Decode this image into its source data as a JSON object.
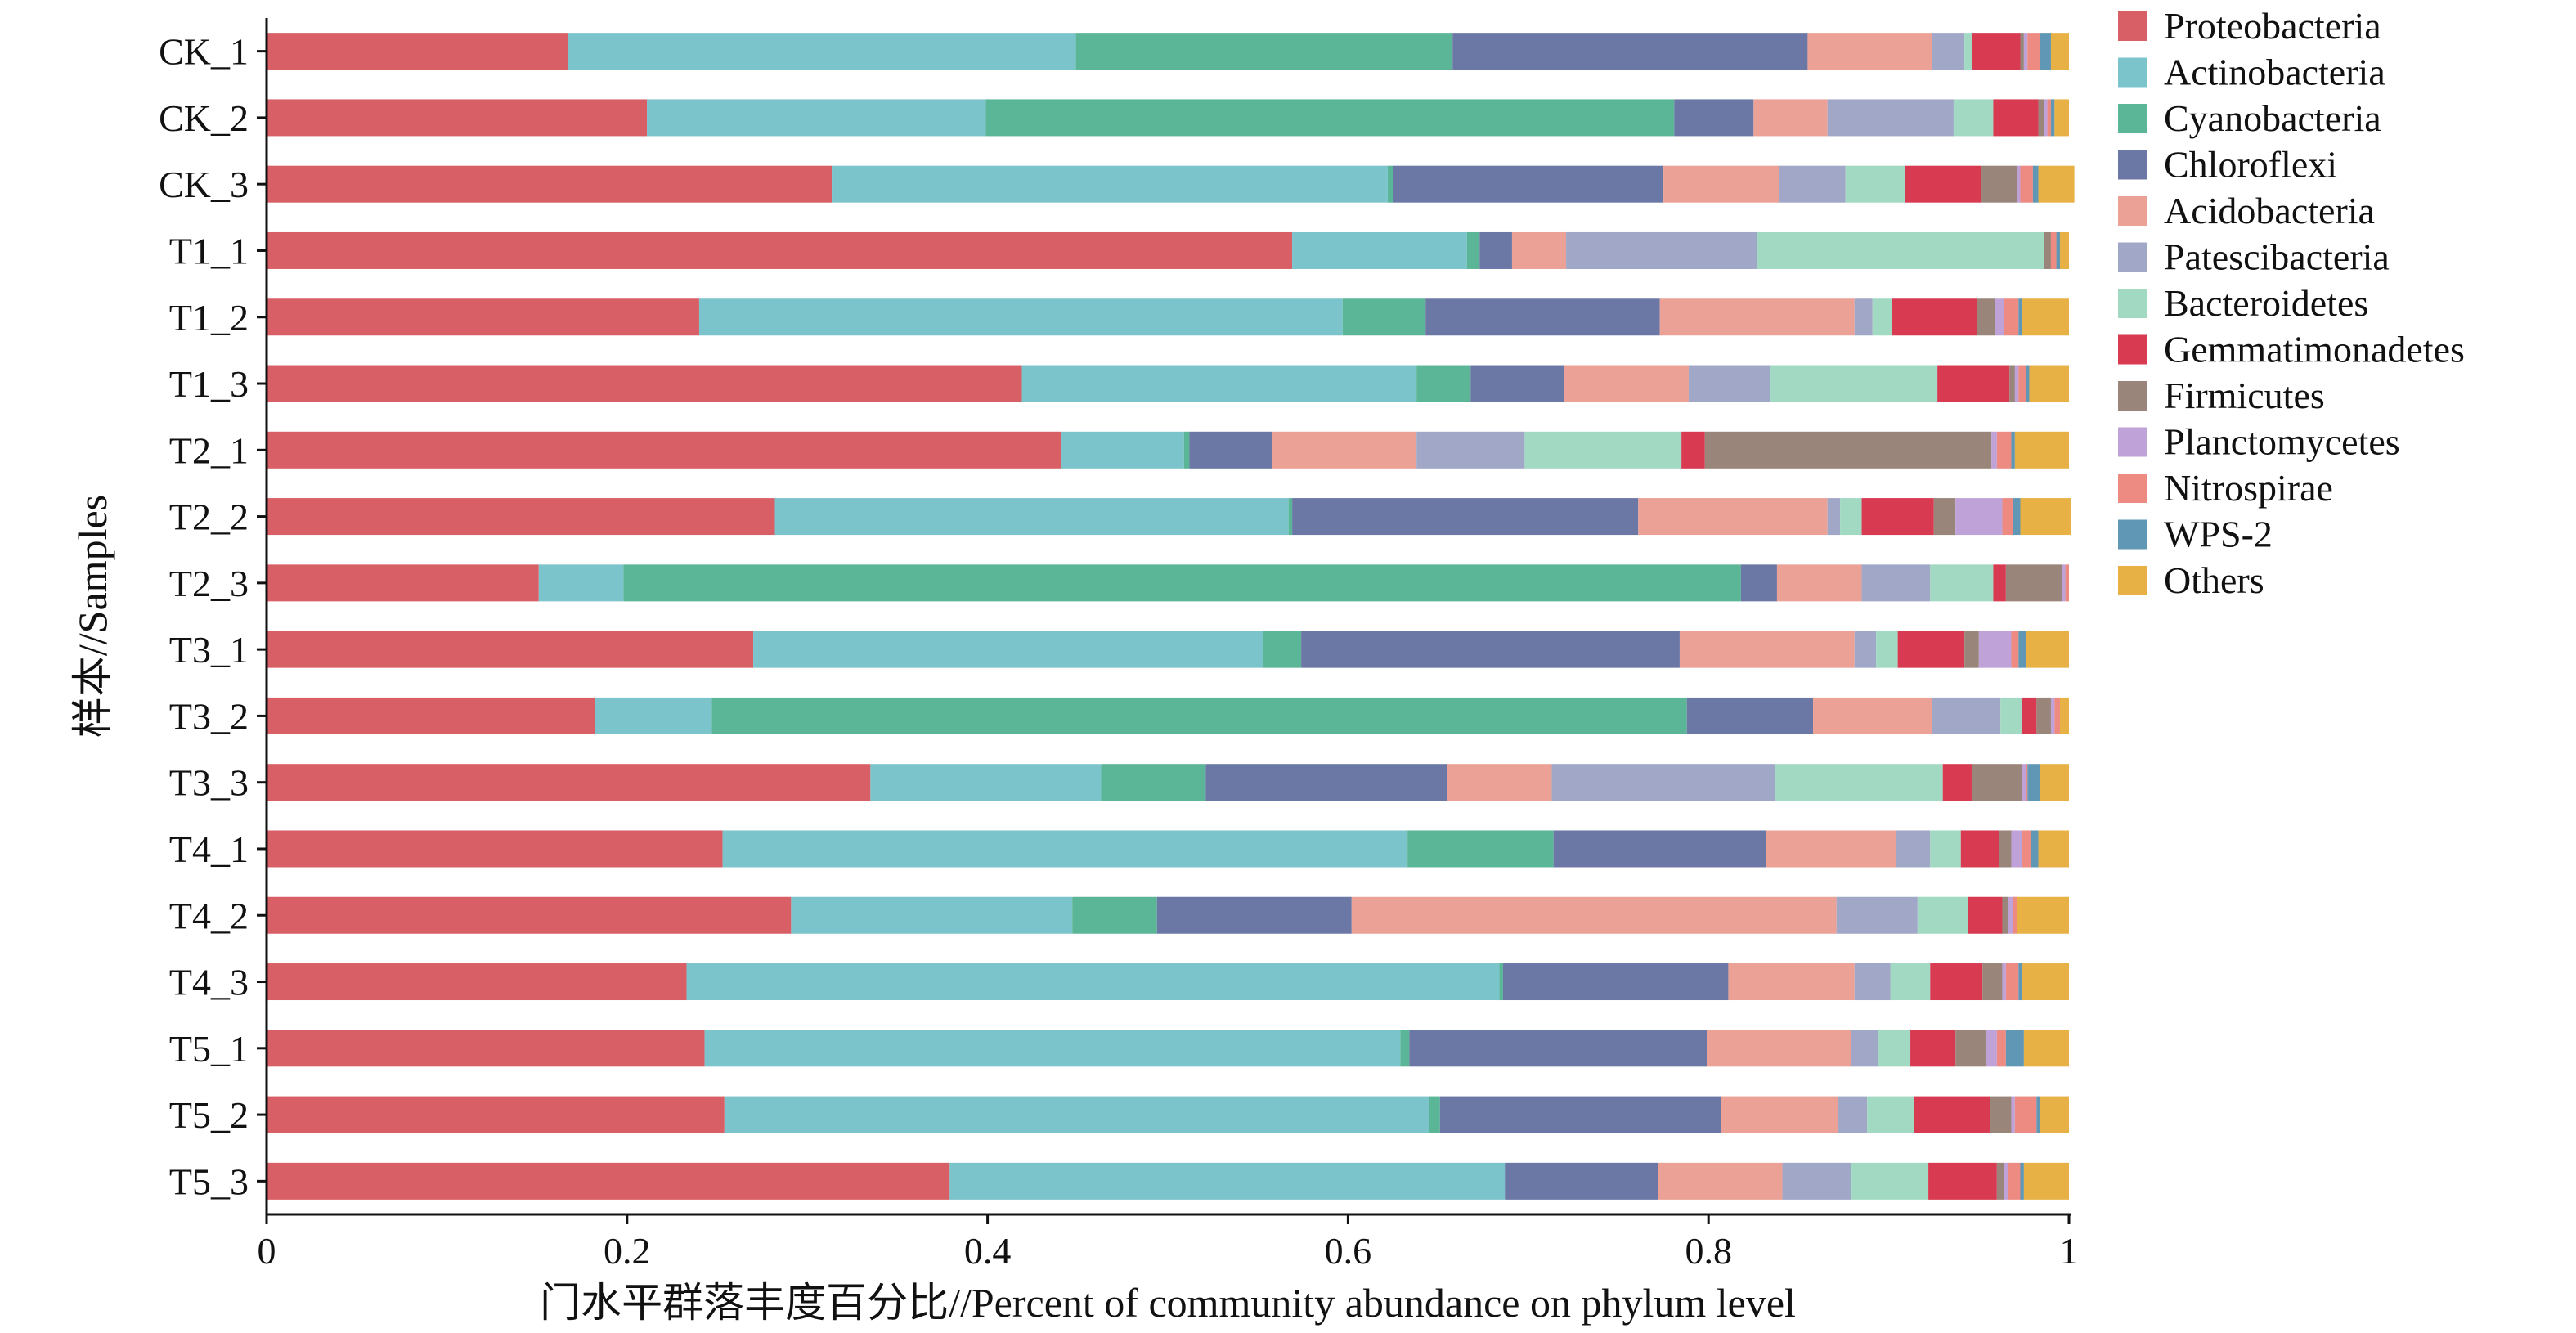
{
  "chart_data": {
    "type": "bar",
    "orientation": "horizontal",
    "stacked": true,
    "title": "",
    "xlabel": "门水平群落丰度百分比//Percent of community abundance on phylum level",
    "ylabel": "样本//Samples",
    "xlim": [
      0,
      1
    ],
    "xticks": [
      "0",
      "0.2",
      "0.4",
      "0.6",
      "0.8",
      "1"
    ],
    "grid": false,
    "legend_position": "right",
    "categories": [
      "CK_1",
      "CK_2",
      "CK_3",
      "T1_1",
      "T1_2",
      "T1_3",
      "T2_1",
      "T2_2",
      "T2_3",
      "T3_1",
      "T3_2",
      "T3_3",
      "T4_1",
      "T4_2",
      "T4_3",
      "T5_1",
      "T5_2",
      "T5_3"
    ],
    "series": [
      {
        "name": "Proteobacteria",
        "color": "#d95f66",
        "values": [
          0.167,
          0.211,
          0.314,
          0.569,
          0.24,
          0.419,
          0.441,
          0.282,
          0.151,
          0.27,
          0.182,
          0.335,
          0.253,
          0.291,
          0.233,
          0.243,
          0.254,
          0.379
        ]
      },
      {
        "name": "Actinobacteria",
        "color": "#7cc4cb",
        "values": [
          0.282,
          0.188,
          0.308,
          0.097,
          0.357,
          0.219,
          0.068,
          0.285,
          0.047,
          0.283,
          0.065,
          0.128,
          0.38,
          0.156,
          0.451,
          0.386,
          0.391,
          0.308
        ]
      },
      {
        "name": "Cyanobacteria",
        "color": "#5bb597",
        "values": [
          0.209,
          0.382,
          0.003,
          0.007,
          0.046,
          0.03,
          0.003,
          0.002,
          0.62,
          0.021,
          0.541,
          0.058,
          0.081,
          0.047,
          0.002,
          0.005,
          0.006,
          0.0
        ]
      },
      {
        "name": "Chloroflexi",
        "color": "#6b78a6",
        "values": [
          0.197,
          0.044,
          0.15,
          0.018,
          0.13,
          0.052,
          0.046,
          0.192,
          0.02,
          0.21,
          0.07,
          0.134,
          0.118,
          0.108,
          0.125,
          0.165,
          0.156,
          0.085
        ]
      },
      {
        "name": "Acidobacteria",
        "color": "#eba196",
        "values": [
          0.069,
          0.041,
          0.064,
          0.03,
          0.108,
          0.069,
          0.08,
          0.105,
          0.047,
          0.097,
          0.066,
          0.058,
          0.072,
          0.269,
          0.07,
          0.08,
          0.065,
          0.069
        ]
      },
      {
        "name": "Patescibacteria",
        "color": "#a0a7c7",
        "values": [
          0.018,
          0.07,
          0.037,
          0.106,
          0.01,
          0.045,
          0.06,
          0.007,
          0.038,
          0.012,
          0.038,
          0.124,
          0.019,
          0.045,
          0.02,
          0.015,
          0.016,
          0.038
        ]
      },
      {
        "name": "Bacteroidetes",
        "color": "#a2d9c2",
        "values": [
          0.004,
          0.022,
          0.033,
          0.159,
          0.011,
          0.093,
          0.087,
          0.012,
          0.035,
          0.012,
          0.012,
          0.093,
          0.017,
          0.028,
          0.022,
          0.018,
          0.026,
          0.043
        ]
      },
      {
        "name": "Gemmatimonadetes",
        "color": "#d83a52",
        "values": [
          0.027,
          0.025,
          0.042,
          0.0,
          0.047,
          0.04,
          0.013,
          0.04,
          0.007,
          0.037,
          0.008,
          0.016,
          0.021,
          0.019,
          0.029,
          0.025,
          0.042,
          0.038
        ]
      },
      {
        "name": "Firmicutes",
        "color": "#9a857a",
        "values": [
          0.002,
          0.003,
          0.02,
          0.004,
          0.01,
          0.003,
          0.159,
          0.012,
          0.031,
          0.008,
          0.008,
          0.028,
          0.007,
          0.003,
          0.011,
          0.017,
          0.012,
          0.004
        ]
      },
      {
        "name": "Planctomycetes",
        "color": "#bfa3d8",
        "values": [
          0.002,
          0.002,
          0.002,
          0.0,
          0.005,
          0.002,
          0.003,
          0.026,
          0.002,
          0.018,
          0.002,
          0.002,
          0.006,
          0.003,
          0.002,
          0.006,
          0.002,
          0.002
        ]
      },
      {
        "name": "Nitrospirae",
        "color": "#ed8a82",
        "values": [
          0.007,
          0.002,
          0.007,
          0.003,
          0.008,
          0.004,
          0.008,
          0.006,
          0.002,
          0.004,
          0.003,
          0.001,
          0.005,
          0.002,
          0.007,
          0.005,
          0.012,
          0.007
        ]
      },
      {
        "name": "WPS-2",
        "color": "#5f97b4",
        "values": [
          0.006,
          0.002,
          0.003,
          0.002,
          0.002,
          0.002,
          0.002,
          0.004,
          0.0,
          0.004,
          0.0,
          0.007,
          0.004,
          0.0,
          0.002,
          0.01,
          0.002,
          0.002
        ]
      },
      {
        "name": "Others",
        "color": "#e8b146",
        "values": [
          0.01,
          0.008,
          0.02,
          0.005,
          0.026,
          0.022,
          0.03,
          0.028,
          0.0,
          0.024,
          0.005,
          0.016,
          0.017,
          0.029,
          0.026,
          0.025,
          0.016,
          0.025
        ]
      }
    ]
  }
}
